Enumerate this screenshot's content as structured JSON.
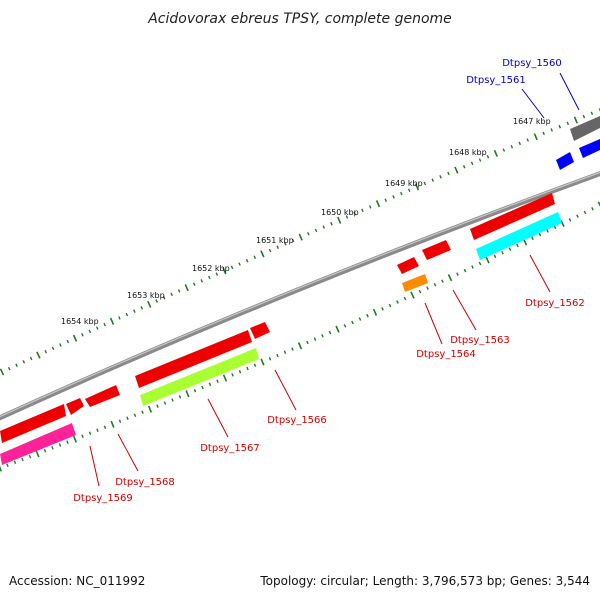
{
  "title": "Acidovorax ebreus TPSY, complete genome",
  "ticks": [
    {
      "label": "1647 kbp"
    },
    {
      "label": "1648 kbp"
    },
    {
      "label": "1649 kbp"
    },
    {
      "label": "1650 kbp"
    },
    {
      "label": "1651 kbp"
    },
    {
      "label": "1652 kbp"
    },
    {
      "label": "1653 kbp"
    },
    {
      "label": "1654 kbp"
    }
  ],
  "genes": [
    {
      "name": "Dtpsy_1560",
      "color": "#0000cc"
    },
    {
      "name": "Dtpsy_1561",
      "color": "#0000cc"
    },
    {
      "name": "Dtpsy_1562",
      "color": "#cc0000"
    },
    {
      "name": "Dtpsy_1563",
      "color": "#cc0000"
    },
    {
      "name": "Dtpsy_1564",
      "color": "#cc0000"
    },
    {
      "name": "Dtpsy_1566",
      "color": "#cc0000"
    },
    {
      "name": "Dtpsy_1567",
      "color": "#cc0000"
    },
    {
      "name": "Dtpsy_1568",
      "color": "#cc0000"
    },
    {
      "name": "Dtpsy_1569",
      "color": "#cc0000"
    }
  ],
  "footer": {
    "accession": "Accession: NC_011992",
    "summary": "Topology: circular; Length: 3,796,573 bp; Genes: 3,544"
  },
  "colors": {
    "backbone": "#808080",
    "tick": "#1e7a1e",
    "forward_feature": "#ff0000",
    "cds_cyan": "#00ffff",
    "cds_green": "#aaff33",
    "cds_magenta": "#ff2299",
    "cds_orange": "#ff8c00",
    "cds_grey": "#666666",
    "cds_blue": "#0000ff"
  }
}
